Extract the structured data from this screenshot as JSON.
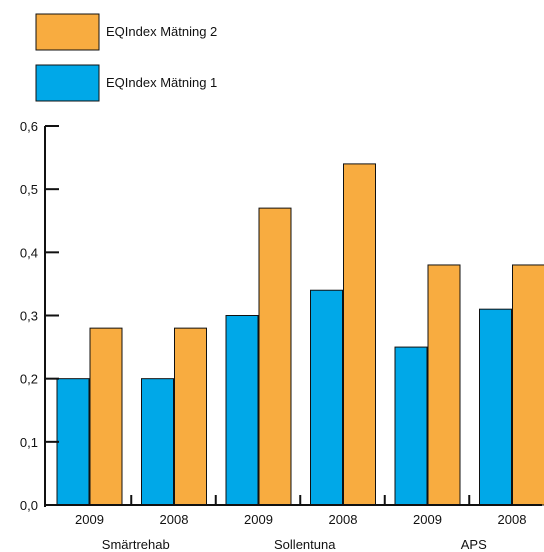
{
  "chart_data": {
    "type": "bar",
    "categories": [
      "2009",
      "2008",
      "2009",
      "2008",
      "2009",
      "2008"
    ],
    "groups": [
      {
        "label": "Smärtrehab",
        "categories": [
          "2009",
          "2008"
        ]
      },
      {
        "label": "Sollentuna",
        "categories": [
          "2009",
          "2008"
        ]
      },
      {
        "label": "APS",
        "categories": [
          "2009",
          "2008"
        ]
      }
    ],
    "series": [
      {
        "name": "EQIndex Mätning 1",
        "color": "#00A8E8",
        "values": [
          0.2,
          0.2,
          0.3,
          0.34,
          0.25,
          0.31
        ]
      },
      {
        "name": "EQIndex Mätning 2",
        "color": "#F8AC40",
        "values": [
          0.28,
          0.28,
          0.47,
          0.54,
          0.38,
          0.38
        ]
      }
    ],
    "yticks": [
      "0,0",
      "0,1",
      "0,2",
      "0,3",
      "0,4",
      "0,5",
      "0,6"
    ],
    "ylim": [
      0,
      0.6
    ],
    "grid": false,
    "legend_position": "top-left",
    "title": "",
    "xlabel": "",
    "ylabel": ""
  }
}
